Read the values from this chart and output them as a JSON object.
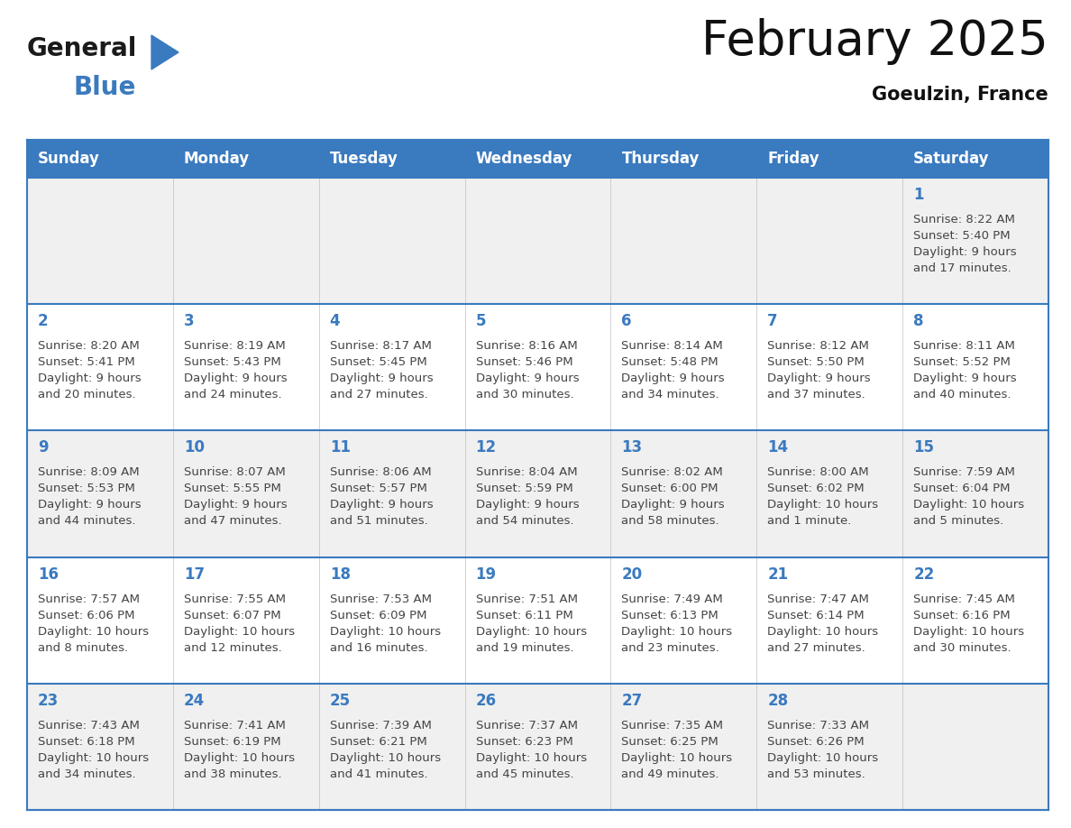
{
  "title": "February 2025",
  "subtitle": "Goeulzin, France",
  "header_color": "#3a7abf",
  "header_text_color": "#ffffff",
  "days_of_week": [
    "Sunday",
    "Monday",
    "Tuesday",
    "Wednesday",
    "Thursday",
    "Friday",
    "Saturday"
  ],
  "cell_bg_odd": "#f0f0f0",
  "cell_bg_even": "#ffffff",
  "border_color": "#3a7abf",
  "row_sep_color": "#3a7abf",
  "col_sep_color": "#c0c0c0",
  "text_color": "#444444",
  "day_number_color": "#3a7abf",
  "calendar_data": [
    [
      {
        "day": null,
        "text": ""
      },
      {
        "day": null,
        "text": ""
      },
      {
        "day": null,
        "text": ""
      },
      {
        "day": null,
        "text": ""
      },
      {
        "day": null,
        "text": ""
      },
      {
        "day": null,
        "text": ""
      },
      {
        "day": 1,
        "text": "Sunrise: 8:22 AM\nSunset: 5:40 PM\nDaylight: 9 hours\nand 17 minutes."
      }
    ],
    [
      {
        "day": 2,
        "text": "Sunrise: 8:20 AM\nSunset: 5:41 PM\nDaylight: 9 hours\nand 20 minutes."
      },
      {
        "day": 3,
        "text": "Sunrise: 8:19 AM\nSunset: 5:43 PM\nDaylight: 9 hours\nand 24 minutes."
      },
      {
        "day": 4,
        "text": "Sunrise: 8:17 AM\nSunset: 5:45 PM\nDaylight: 9 hours\nand 27 minutes."
      },
      {
        "day": 5,
        "text": "Sunrise: 8:16 AM\nSunset: 5:46 PM\nDaylight: 9 hours\nand 30 minutes."
      },
      {
        "day": 6,
        "text": "Sunrise: 8:14 AM\nSunset: 5:48 PM\nDaylight: 9 hours\nand 34 minutes."
      },
      {
        "day": 7,
        "text": "Sunrise: 8:12 AM\nSunset: 5:50 PM\nDaylight: 9 hours\nand 37 minutes."
      },
      {
        "day": 8,
        "text": "Sunrise: 8:11 AM\nSunset: 5:52 PM\nDaylight: 9 hours\nand 40 minutes."
      }
    ],
    [
      {
        "day": 9,
        "text": "Sunrise: 8:09 AM\nSunset: 5:53 PM\nDaylight: 9 hours\nand 44 minutes."
      },
      {
        "day": 10,
        "text": "Sunrise: 8:07 AM\nSunset: 5:55 PM\nDaylight: 9 hours\nand 47 minutes."
      },
      {
        "day": 11,
        "text": "Sunrise: 8:06 AM\nSunset: 5:57 PM\nDaylight: 9 hours\nand 51 minutes."
      },
      {
        "day": 12,
        "text": "Sunrise: 8:04 AM\nSunset: 5:59 PM\nDaylight: 9 hours\nand 54 minutes."
      },
      {
        "day": 13,
        "text": "Sunrise: 8:02 AM\nSunset: 6:00 PM\nDaylight: 9 hours\nand 58 minutes."
      },
      {
        "day": 14,
        "text": "Sunrise: 8:00 AM\nSunset: 6:02 PM\nDaylight: 10 hours\nand 1 minute."
      },
      {
        "day": 15,
        "text": "Sunrise: 7:59 AM\nSunset: 6:04 PM\nDaylight: 10 hours\nand 5 minutes."
      }
    ],
    [
      {
        "day": 16,
        "text": "Sunrise: 7:57 AM\nSunset: 6:06 PM\nDaylight: 10 hours\nand 8 minutes."
      },
      {
        "day": 17,
        "text": "Sunrise: 7:55 AM\nSunset: 6:07 PM\nDaylight: 10 hours\nand 12 minutes."
      },
      {
        "day": 18,
        "text": "Sunrise: 7:53 AM\nSunset: 6:09 PM\nDaylight: 10 hours\nand 16 minutes."
      },
      {
        "day": 19,
        "text": "Sunrise: 7:51 AM\nSunset: 6:11 PM\nDaylight: 10 hours\nand 19 minutes."
      },
      {
        "day": 20,
        "text": "Sunrise: 7:49 AM\nSunset: 6:13 PM\nDaylight: 10 hours\nand 23 minutes."
      },
      {
        "day": 21,
        "text": "Sunrise: 7:47 AM\nSunset: 6:14 PM\nDaylight: 10 hours\nand 27 minutes."
      },
      {
        "day": 22,
        "text": "Sunrise: 7:45 AM\nSunset: 6:16 PM\nDaylight: 10 hours\nand 30 minutes."
      }
    ],
    [
      {
        "day": 23,
        "text": "Sunrise: 7:43 AM\nSunset: 6:18 PM\nDaylight: 10 hours\nand 34 minutes."
      },
      {
        "day": 24,
        "text": "Sunrise: 7:41 AM\nSunset: 6:19 PM\nDaylight: 10 hours\nand 38 minutes."
      },
      {
        "day": 25,
        "text": "Sunrise: 7:39 AM\nSunset: 6:21 PM\nDaylight: 10 hours\nand 41 minutes."
      },
      {
        "day": 26,
        "text": "Sunrise: 7:37 AM\nSunset: 6:23 PM\nDaylight: 10 hours\nand 45 minutes."
      },
      {
        "day": 27,
        "text": "Sunrise: 7:35 AM\nSunset: 6:25 PM\nDaylight: 10 hours\nand 49 minutes."
      },
      {
        "day": 28,
        "text": "Sunrise: 7:33 AM\nSunset: 6:26 PM\nDaylight: 10 hours\nand 53 minutes."
      },
      {
        "day": null,
        "text": ""
      }
    ]
  ],
  "logo_general_color": "#1a1a1a",
  "logo_blue_color": "#3a7abf",
  "title_fontsize": 38,
  "subtitle_fontsize": 15,
  "dow_fontsize": 12,
  "day_num_fontsize": 12,
  "cell_text_fontsize": 9.5
}
